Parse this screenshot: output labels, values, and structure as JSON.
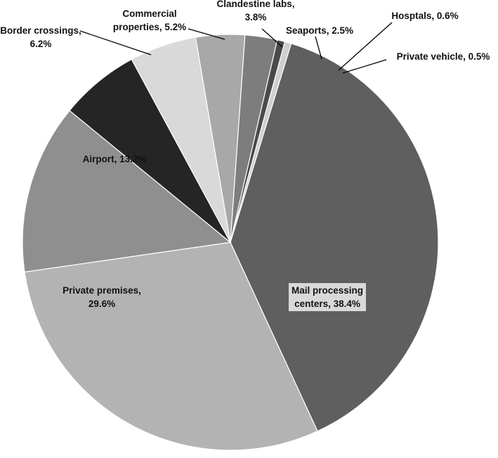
{
  "chart_data": {
    "type": "pie",
    "title": "",
    "legend": "none",
    "slices": [
      {
        "label": "Mail processing centers",
        "value": 38.4,
        "display": [
          "Mail processing",
          "centers, 38.4%"
        ],
        "color": "#5f5f5f"
      },
      {
        "label": "Private premises",
        "value": 29.6,
        "display": [
          "Private premises,",
          "29.6%"
        ],
        "color": "#b3b3b3"
      },
      {
        "label": "Airport",
        "value": 13.2,
        "display": [
          "Airport, 13.2%"
        ],
        "color": "#8f8f8f"
      },
      {
        "label": "Border crossings",
        "value": 6.2,
        "display": [
          "Border crossings,",
          "6.2%"
        ],
        "color": "#252525"
      },
      {
        "label": "Commercial properties",
        "value": 5.2,
        "display": [
          "Commercial",
          "properties, 5.2%"
        ],
        "color": "#d9d9d9"
      },
      {
        "label": "Clandestine labs",
        "value": 3.8,
        "display": [
          "Clandestine labs,",
          "3.8%"
        ],
        "color": "#a8a8a8"
      },
      {
        "label": "Seaports",
        "value": 2.5,
        "display": [
          "Seaports, 2.5%"
        ],
        "color": "#7d7d7d"
      },
      {
        "label": "Hosptals",
        "value": 0.6,
        "display": [
          "Hosptals, 0.6%"
        ],
        "color": "#4a4a4a"
      },
      {
        "label": "Private vehicle",
        "value": 0.5,
        "display": [
          "Private vehicle, 0.5%"
        ],
        "color": "#cfcfcf"
      }
    ]
  }
}
